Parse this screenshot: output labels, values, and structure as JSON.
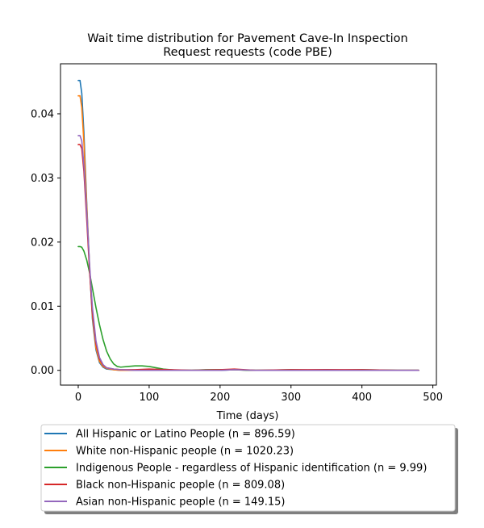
{
  "chart_data": {
    "type": "line",
    "title_lines": [
      "Wait time distribution  for Pavement Cave-In Inspection",
      "Request  requests (code PBE)"
    ],
    "xlabel": "Time (days)",
    "ylabel": "",
    "xlim": [
      -25,
      505
    ],
    "ylim": [
      -0.0023,
      0.0478
    ],
    "xticks": [
      0,
      100,
      200,
      300,
      400,
      500
    ],
    "yticks": [
      0.0,
      0.01,
      0.02,
      0.03,
      0.04
    ],
    "ytick_labels": [
      "0.00",
      "0.01",
      "0.02",
      "0.03",
      "0.04"
    ],
    "grid": false,
    "legend_position": "bottom-center",
    "series": [
      {
        "name": "All Hispanic or Latino People (n = 896.59)",
        "color": "#1f77b4",
        "x": [
          0,
          2.5,
          5,
          8,
          12,
          16,
          20,
          25,
          30,
          35,
          40,
          50,
          60,
          80,
          100,
          130,
          160,
          200,
          220,
          250,
          300,
          350,
          400,
          450,
          480
        ],
        "y": [
          0.0452,
          0.0452,
          0.0432,
          0.037,
          0.026,
          0.016,
          0.008,
          0.0032,
          0.0012,
          0.0005,
          0.0002,
          0.0001,
          0.0,
          0.0,
          0.0,
          0.0,
          0.0,
          0.0,
          0.0001,
          0.0,
          0.0,
          0.0001,
          0.0,
          0.0,
          0.0
        ]
      },
      {
        "name": "White non-Hispanic people (n = 1020.23)",
        "color": "#ff7f0e",
        "x": [
          0,
          2.5,
          5,
          8,
          12,
          16,
          20,
          25,
          30,
          35,
          40,
          50,
          60,
          80,
          100,
          130,
          160,
          200,
          220,
          250,
          300,
          350,
          400,
          450,
          480
        ],
        "y": [
          0.0428,
          0.0428,
          0.041,
          0.0355,
          0.0255,
          0.016,
          0.0085,
          0.0035,
          0.0014,
          0.0006,
          0.0003,
          0.0001,
          0.0,
          0.0,
          0.0001,
          0.0,
          0.0,
          0.0001,
          0.0001,
          0.0,
          0.0,
          0.0,
          0.0,
          0.0,
          0.0
        ]
      },
      {
        "name": "Indigenous People - regardless of Hispanic identification (n = 9.99)",
        "color": "#2ca02c",
        "x": [
          0,
          2.5,
          5,
          8,
          12,
          16,
          20,
          25,
          30,
          35,
          40,
          45,
          50,
          55,
          60,
          70,
          80,
          90,
          100,
          110,
          120,
          130,
          140,
          160,
          180,
          200,
          220,
          240,
          260,
          300,
          350,
          400,
          450,
          480
        ],
        "y": [
          0.0193,
          0.0193,
          0.0192,
          0.0186,
          0.0172,
          0.0152,
          0.0128,
          0.0098,
          0.0071,
          0.0048,
          0.003,
          0.0018,
          0.001,
          0.0006,
          0.0005,
          0.0006,
          0.0007,
          0.0007,
          0.0006,
          0.0004,
          0.0002,
          0.0001,
          0.0,
          0.0,
          0.0001,
          0.0001,
          0.0001,
          0.0,
          0.0,
          0.0001,
          0.0,
          0.0001,
          0.0,
          0.0
        ]
      },
      {
        "name": "Black non-Hispanic people (n = 809.08)",
        "color": "#d62728",
        "x": [
          0,
          2.5,
          5,
          8,
          12,
          16,
          20,
          25,
          30,
          35,
          40,
          50,
          60,
          80,
          100,
          130,
          160,
          200,
          220,
          250,
          300,
          350,
          400,
          450,
          480
        ],
        "y": [
          0.0352,
          0.0352,
          0.0346,
          0.031,
          0.0235,
          0.0155,
          0.009,
          0.0042,
          0.0018,
          0.0008,
          0.0004,
          0.0002,
          0.0001,
          0.0001,
          0.0002,
          0.0001,
          0.0,
          0.0001,
          0.0002,
          0.0,
          0.0001,
          0.0001,
          0.0001,
          0.0,
          0.0
        ]
      },
      {
        "name": "Asian non-Hispanic people (n = 149.15)",
        "color": "#9467bd",
        "x": [
          0,
          2.5,
          5,
          8,
          12,
          16,
          20,
          25,
          30,
          35,
          40,
          50,
          60,
          80,
          100,
          130,
          160,
          200,
          220,
          250,
          300,
          350,
          400,
          450,
          480
        ],
        "y": [
          0.0366,
          0.0366,
          0.0358,
          0.032,
          0.0245,
          0.0165,
          0.0098,
          0.0046,
          0.002,
          0.0009,
          0.0004,
          0.0002,
          0.0001,
          0.0,
          0.0,
          0.0,
          0.0,
          0.0,
          0.0001,
          0.0,
          0.0,
          0.0,
          0.0,
          0.0,
          0.0
        ]
      }
    ]
  }
}
